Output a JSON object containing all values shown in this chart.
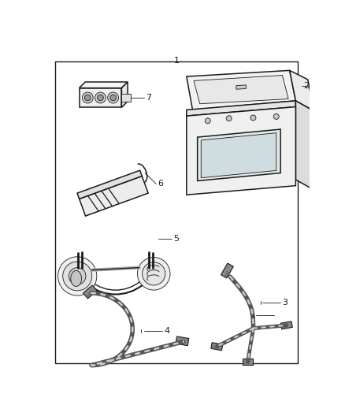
{
  "bg_color": "#ffffff",
  "border_color": "#1a1a1a",
  "line_color": "#1a1a1a",
  "label_color": "#333333",
  "figsize": [
    4.38,
    5.33
  ],
  "dpi": 100,
  "lw_main": 1.1,
  "lw_thin": 0.6
}
